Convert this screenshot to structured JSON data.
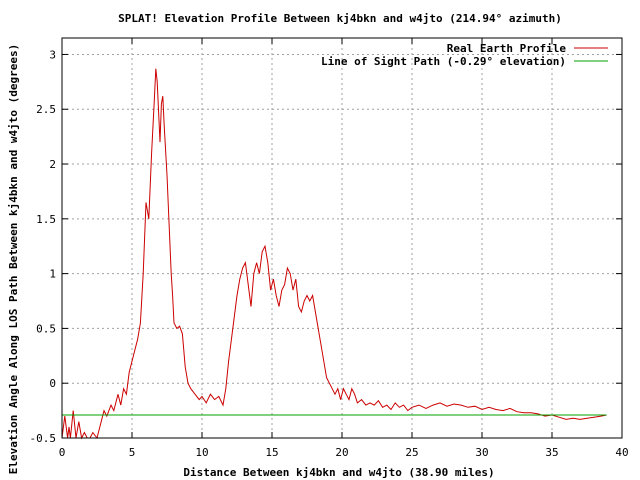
{
  "chart_data": {
    "type": "line",
    "title": "SPLAT! Elevation Profile Between kj4bkn and w4jto (214.94° azimuth)",
    "xlabel": "Distance Between kj4bkn and w4jto (38.90 miles)",
    "ylabel": "Elevation Angle Along LOS Path Between kj4bkn and w4jto (degrees)",
    "xlim": [
      0,
      40
    ],
    "ylim": [
      -0.5,
      3.15
    ],
    "x_ticks": [
      "0",
      "5",
      "10",
      "15",
      "20",
      "25",
      "30",
      "35",
      "40"
    ],
    "y_ticks": [
      "-0.5",
      "0",
      "0.5",
      "1",
      "1.5",
      "2",
      "2.5",
      "3"
    ],
    "x_tick_values": [
      0,
      5,
      10,
      15,
      20,
      25,
      30,
      35,
      40
    ],
    "y_tick_values": [
      -0.5,
      0,
      0.5,
      1,
      1.5,
      2,
      2.5,
      3
    ],
    "grid": true,
    "legend_position": "top-right",
    "series": [
      {
        "name": "Real Earth Profile",
        "color": "#cc0000",
        "points": [
          [
            0,
            -0.5
          ],
          [
            0.2,
            -0.3
          ],
          [
            0.4,
            -0.5
          ],
          [
            0.5,
            -0.4
          ],
          [
            0.6,
            -0.5
          ],
          [
            0.8,
            -0.25
          ],
          [
            1.0,
            -0.5
          ],
          [
            1.2,
            -0.35
          ],
          [
            1.4,
            -0.5
          ],
          [
            1.6,
            -0.45
          ],
          [
            1.8,
            -0.5
          ],
          [
            2.0,
            -0.5
          ],
          [
            2.2,
            -0.45
          ],
          [
            2.5,
            -0.5
          ],
          [
            2.8,
            -0.35
          ],
          [
            3.0,
            -0.25
          ],
          [
            3.2,
            -0.3
          ],
          [
            3.5,
            -0.2
          ],
          [
            3.7,
            -0.25
          ],
          [
            4.0,
            -0.1
          ],
          [
            4.2,
            -0.2
          ],
          [
            4.4,
            -0.05
          ],
          [
            4.6,
            -0.1
          ],
          [
            4.8,
            0.1
          ],
          [
            5.0,
            0.2
          ],
          [
            5.2,
            0.3
          ],
          [
            5.4,
            0.4
          ],
          [
            5.6,
            0.55
          ],
          [
            5.8,
            1.0
          ],
          [
            6.0,
            1.65
          ],
          [
            6.2,
            1.5
          ],
          [
            6.4,
            2.1
          ],
          [
            6.6,
            2.6
          ],
          [
            6.7,
            2.87
          ],
          [
            6.8,
            2.75
          ],
          [
            7.0,
            2.2
          ],
          [
            7.1,
            2.55
          ],
          [
            7.2,
            2.62
          ],
          [
            7.3,
            2.35
          ],
          [
            7.5,
            1.9
          ],
          [
            7.6,
            1.6
          ],
          [
            7.8,
            1.0
          ],
          [
            7.9,
            0.8
          ],
          [
            8.0,
            0.55
          ],
          [
            8.2,
            0.5
          ],
          [
            8.4,
            0.52
          ],
          [
            8.6,
            0.45
          ],
          [
            8.8,
            0.15
          ],
          [
            9.0,
            0.0
          ],
          [
            9.2,
            -0.05
          ],
          [
            9.5,
            -0.1
          ],
          [
            9.8,
            -0.15
          ],
          [
            10.0,
            -0.12
          ],
          [
            10.3,
            -0.18
          ],
          [
            10.6,
            -0.1
          ],
          [
            10.9,
            -0.15
          ],
          [
            11.2,
            -0.12
          ],
          [
            11.5,
            -0.2
          ],
          [
            11.7,
            -0.05
          ],
          [
            11.9,
            0.2
          ],
          [
            12.1,
            0.4
          ],
          [
            12.3,
            0.6
          ],
          [
            12.5,
            0.8
          ],
          [
            12.7,
            0.95
          ],
          [
            12.9,
            1.05
          ],
          [
            13.1,
            1.1
          ],
          [
            13.3,
            0.9
          ],
          [
            13.5,
            0.7
          ],
          [
            13.7,
            1.0
          ],
          [
            13.9,
            1.1
          ],
          [
            14.1,
            1.0
          ],
          [
            14.3,
            1.2
          ],
          [
            14.5,
            1.25
          ],
          [
            14.7,
            1.1
          ],
          [
            14.9,
            0.85
          ],
          [
            15.1,
            0.95
          ],
          [
            15.3,
            0.8
          ],
          [
            15.5,
            0.7
          ],
          [
            15.7,
            0.85
          ],
          [
            15.9,
            0.9
          ],
          [
            16.1,
            1.05
          ],
          [
            16.3,
            1.0
          ],
          [
            16.5,
            0.85
          ],
          [
            16.7,
            0.95
          ],
          [
            16.9,
            0.7
          ],
          [
            17.1,
            0.65
          ],
          [
            17.3,
            0.75
          ],
          [
            17.5,
            0.8
          ],
          [
            17.7,
            0.75
          ],
          [
            17.9,
            0.8
          ],
          [
            18.1,
            0.65
          ],
          [
            18.3,
            0.5
          ],
          [
            18.5,
            0.35
          ],
          [
            18.7,
            0.2
          ],
          [
            18.9,
            0.05
          ],
          [
            19.1,
            0.0
          ],
          [
            19.3,
            -0.05
          ],
          [
            19.5,
            -0.1
          ],
          [
            19.7,
            -0.05
          ],
          [
            19.9,
            -0.15
          ],
          [
            20.1,
            -0.05
          ],
          [
            20.3,
            -0.1
          ],
          [
            20.5,
            -0.15
          ],
          [
            20.7,
            -0.05
          ],
          [
            20.9,
            -0.1
          ],
          [
            21.1,
            -0.18
          ],
          [
            21.4,
            -0.15
          ],
          [
            21.7,
            -0.2
          ],
          [
            22.0,
            -0.18
          ],
          [
            22.3,
            -0.2
          ],
          [
            22.6,
            -0.16
          ],
          [
            22.9,
            -0.22
          ],
          [
            23.2,
            -0.2
          ],
          [
            23.5,
            -0.24
          ],
          [
            23.8,
            -0.18
          ],
          [
            24.1,
            -0.22
          ],
          [
            24.4,
            -0.2
          ],
          [
            24.7,
            -0.25
          ],
          [
            25.0,
            -0.22
          ],
          [
            25.5,
            -0.2
          ],
          [
            26.0,
            -0.23
          ],
          [
            26.5,
            -0.2
          ],
          [
            27.0,
            -0.18
          ],
          [
            27.5,
            -0.21
          ],
          [
            28.0,
            -0.19
          ],
          [
            28.5,
            -0.2
          ],
          [
            29.0,
            -0.22
          ],
          [
            29.5,
            -0.21
          ],
          [
            30.0,
            -0.24
          ],
          [
            30.5,
            -0.22
          ],
          [
            31.0,
            -0.24
          ],
          [
            31.5,
            -0.25
          ],
          [
            32.0,
            -0.23
          ],
          [
            32.5,
            -0.26
          ],
          [
            33.0,
            -0.27
          ],
          [
            33.5,
            -0.27
          ],
          [
            34.0,
            -0.28
          ],
          [
            34.5,
            -0.3
          ],
          [
            35.0,
            -0.29
          ],
          [
            35.5,
            -0.31
          ],
          [
            36.0,
            -0.33
          ],
          [
            36.5,
            -0.32
          ],
          [
            37.0,
            -0.33
          ],
          [
            37.5,
            -0.32
          ],
          [
            38.0,
            -0.31
          ],
          [
            38.5,
            -0.3
          ],
          [
            38.9,
            -0.29
          ]
        ]
      },
      {
        "name": "Line of Sight Path (-0.29° elevation)",
        "color": "#00a000",
        "points": [
          [
            0,
            -0.29
          ],
          [
            38.9,
            -0.29
          ]
        ]
      }
    ]
  }
}
